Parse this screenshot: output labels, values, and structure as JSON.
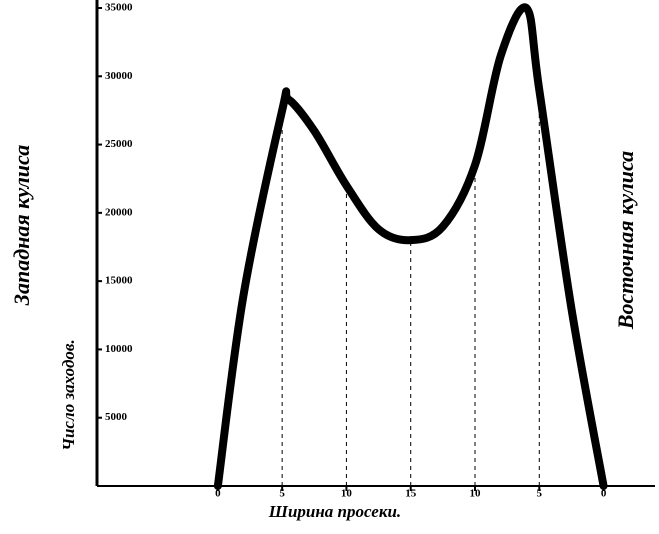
{
  "chart_data": {
    "type": "line",
    "left_label": "Западная кулиса",
    "y_label": "Число заходов.",
    "right_label": "Восточная кулиса",
    "x_label": "Ширина просеки.",
    "x": [
      0,
      2,
      5,
      5.5,
      7.5,
      10,
      12.5,
      15,
      17.5,
      20,
      22,
      24,
      25,
      27.5,
      30
    ],
    "series": [
      {
        "color": "#000000",
        "values": [
          0,
          14000,
          27500,
          28300,
          26000,
          22000,
          18800,
          18000,
          19000,
          23500,
          31500,
          35000,
          29000,
          13000,
          0
        ]
      }
    ],
    "drop_lines": [
      2,
      5,
      7,
      9,
      12
    ],
    "xlim": [
      -9.4,
      34
    ],
    "xticks": [
      0,
      5,
      10,
      15,
      {
        "value": 20,
        "label": "10"
      },
      {
        "value": 25,
        "label": "5"
      },
      {
        "value": 30,
        "label": "0"
      }
    ],
    "ylim": [
      0,
      35000
    ],
    "yticks": [
      5000,
      10000,
      15000,
      20000,
      25000,
      30000,
      35000
    ]
  }
}
